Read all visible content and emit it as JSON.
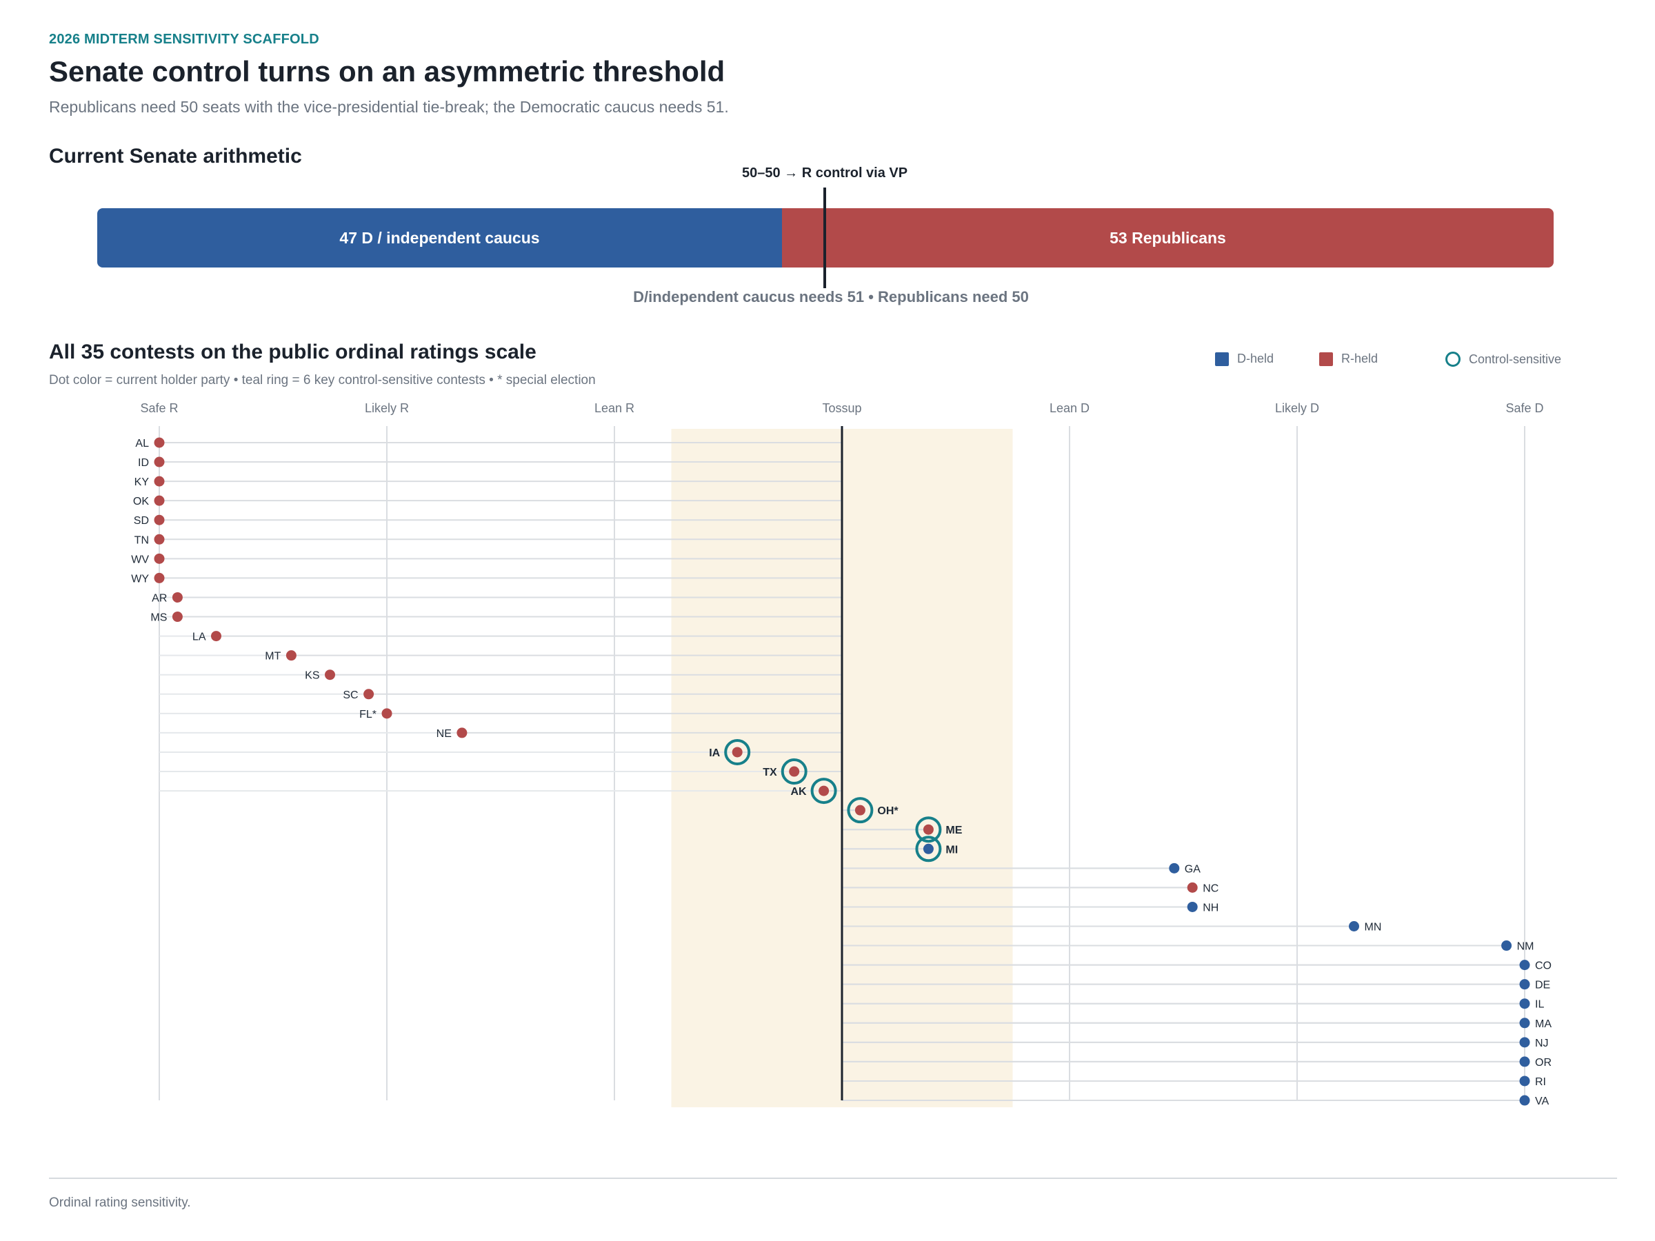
{
  "header": {
    "kicker": "2026 MIDTERM SENSITIVITY SCAFFOLD",
    "title": "Senate control turns on an asymmetric threshold",
    "subtitle": "Republicans need 50 seats with the vice-presidential tie-break; the Democratic caucus needs 51."
  },
  "arithmetic": {
    "title": "Current Senate arithmetic",
    "d_label": "47 D / independent caucus",
    "r_label": "53 Republicans",
    "d_seats": 47,
    "r_seats": 53,
    "threshold_label": "50–50 → R control via VP",
    "needs_label": "D/independent caucus needs 51 • Republicans need 50"
  },
  "ratings": {
    "title": "All 35 contests on the public ordinal ratings scale",
    "note": "Dot color = current holder party • teal ring = 6 key control-sensitive contests • * special election"
  },
  "legend": {
    "d_label": "D-held",
    "r_label": "R-held",
    "ring_label": "Control-sensitive"
  },
  "colors": {
    "d": "#2f5e9e",
    "r": "#b24a4a",
    "ring": "#17808a",
    "tossup_band": "#faf3e4"
  },
  "chart_data": {
    "type": "scatter",
    "x_scale": [
      "Safe R",
      "Likely R",
      "Lean R",
      "Tossup",
      "Lean D",
      "Likely D",
      "Safe D"
    ],
    "xlim": [
      -3,
      3
    ],
    "tossup_band": [
      -0.75,
      0.75
    ],
    "points": [
      {
        "state": "AL",
        "rating": -3.0,
        "holder": "R",
        "sensitive": false
      },
      {
        "state": "ID",
        "rating": -3.0,
        "holder": "R",
        "sensitive": false
      },
      {
        "state": "KY",
        "rating": -3.0,
        "holder": "R",
        "sensitive": false
      },
      {
        "state": "OK",
        "rating": -3.0,
        "holder": "R",
        "sensitive": false
      },
      {
        "state": "SD",
        "rating": -3.0,
        "holder": "R",
        "sensitive": false
      },
      {
        "state": "TN",
        "rating": -3.0,
        "holder": "R",
        "sensitive": false
      },
      {
        "state": "WV",
        "rating": -3.0,
        "holder": "R",
        "sensitive": false
      },
      {
        "state": "WY",
        "rating": -3.0,
        "holder": "R",
        "sensitive": false
      },
      {
        "state": "AR",
        "rating": -2.92,
        "holder": "R",
        "sensitive": false
      },
      {
        "state": "MS",
        "rating": -2.92,
        "holder": "R",
        "sensitive": false
      },
      {
        "state": "LA",
        "rating": -2.75,
        "holder": "R",
        "sensitive": false
      },
      {
        "state": "MT",
        "rating": -2.42,
        "holder": "R",
        "sensitive": false
      },
      {
        "state": "KS",
        "rating": -2.25,
        "holder": "R",
        "sensitive": false
      },
      {
        "state": "SC",
        "rating": -2.08,
        "holder": "R",
        "sensitive": false
      },
      {
        "state": "FL*",
        "rating": -2.0,
        "holder": "R",
        "sensitive": false
      },
      {
        "state": "NE",
        "rating": -1.67,
        "holder": "R",
        "sensitive": false
      },
      {
        "state": "IA",
        "rating": -0.46,
        "holder": "R",
        "sensitive": true
      },
      {
        "state": "TX",
        "rating": -0.21,
        "holder": "R",
        "sensitive": true
      },
      {
        "state": "AK",
        "rating": -0.08,
        "holder": "R",
        "sensitive": true
      },
      {
        "state": "OH*",
        "rating": 0.08,
        "holder": "R",
        "sensitive": true
      },
      {
        "state": "ME",
        "rating": 0.38,
        "holder": "R",
        "sensitive": true
      },
      {
        "state": "MI",
        "rating": 0.38,
        "holder": "D",
        "sensitive": true
      },
      {
        "state": "GA",
        "rating": 1.46,
        "holder": "D",
        "sensitive": false
      },
      {
        "state": "NC",
        "rating": 1.54,
        "holder": "R",
        "sensitive": false
      },
      {
        "state": "NH",
        "rating": 1.54,
        "holder": "D",
        "sensitive": false
      },
      {
        "state": "MN",
        "rating": 2.25,
        "holder": "D",
        "sensitive": false
      },
      {
        "state": "NM",
        "rating": 2.92,
        "holder": "D",
        "sensitive": false
      },
      {
        "state": "CO",
        "rating": 3.0,
        "holder": "D",
        "sensitive": false
      },
      {
        "state": "DE",
        "rating": 3.0,
        "holder": "D",
        "sensitive": false
      },
      {
        "state": "IL",
        "rating": 3.0,
        "holder": "D",
        "sensitive": false
      },
      {
        "state": "MA",
        "rating": 3.0,
        "holder": "D",
        "sensitive": false
      },
      {
        "state": "NJ",
        "rating": 3.0,
        "holder": "D",
        "sensitive": false
      },
      {
        "state": "OR",
        "rating": 3.0,
        "holder": "D",
        "sensitive": false
      },
      {
        "state": "RI",
        "rating": 3.0,
        "holder": "D",
        "sensitive": false
      },
      {
        "state": "VA",
        "rating": 3.0,
        "holder": "D",
        "sensitive": false
      }
    ]
  },
  "footer": "Ordinal rating sensitivity."
}
